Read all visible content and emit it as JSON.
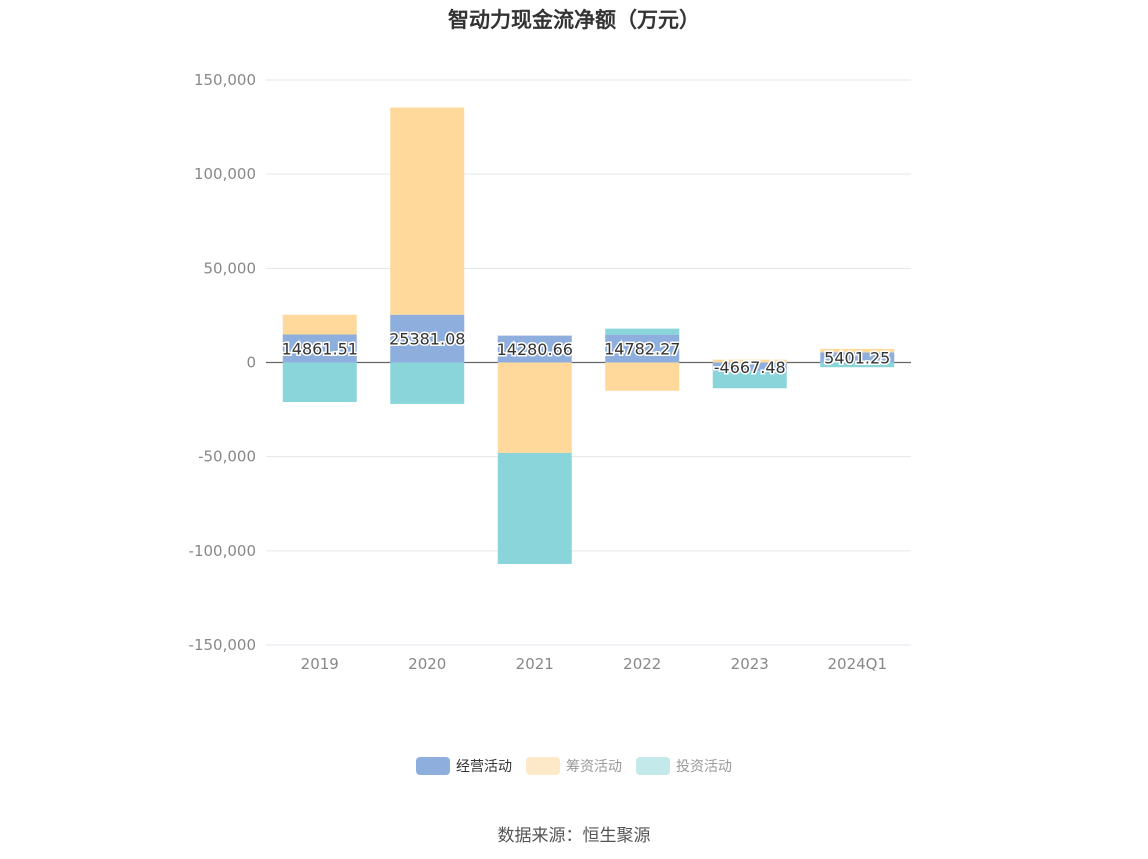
{
  "chart_data": {
    "type": "bar",
    "stacked": true,
    "title": "智动力现金流净额（万元）",
    "categories": [
      "2019",
      "2020",
      "2021",
      "2022",
      "2023",
      "2024Q1"
    ],
    "ylim": [
      -150000,
      150000
    ],
    "yticks": [
      150000,
      100000,
      50000,
      0,
      -50000,
      -100000,
      -150000
    ],
    "ytick_labels": [
      "150,000",
      "100,000",
      "50,000",
      "0",
      "-50,000",
      "-100,000",
      "-150,000"
    ],
    "grid": true,
    "legend_position": "bottom",
    "series": [
      {
        "name": "经营活动",
        "color": "#8eaedd",
        "values": [
          14861.51,
          25381.08,
          14280.66,
          14782.27,
          -4667.48,
          5401.25
        ]
      },
      {
        "name": "筹资活动",
        "color": "#fed99b",
        "values": [
          10500,
          110000,
          -48000,
          -15000,
          1500,
          1800
        ]
      },
      {
        "name": "投资活动",
        "color": "#89d5d9",
        "values": [
          -21000,
          -22000,
          -59000,
          3200,
          -9000,
          -2500
        ]
      }
    ],
    "data_labels": [
      "14861.51",
      "25381.08",
      "14280.66",
      "14782.27",
      "-4667.48",
      "5401.25"
    ]
  },
  "legend": {
    "items": [
      {
        "label": "经营活动",
        "color": "#8eaedd",
        "legend_color": "#8eaedd"
      },
      {
        "label": "筹资活动",
        "color": "#fed99b",
        "legend_color": "#fde8c8"
      },
      {
        "label": "投资活动",
        "color": "#89d5d9",
        "legend_color": "#c4e9eb"
      }
    ]
  },
  "source": "数据来源：恒生聚源"
}
